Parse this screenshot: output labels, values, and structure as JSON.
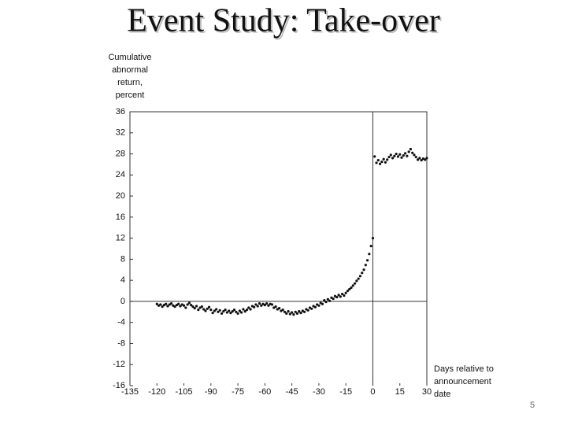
{
  "chart_data": {
    "type": "scatter",
    "title": "Event Study: Take-over",
    "ylabel": [
      "Cumulative",
      "abnormal",
      "return,",
      "percent"
    ],
    "xlabel": [
      "Days relative to",
      "announcement",
      "date"
    ],
    "x": [
      -120,
      -119,
      -118,
      -117,
      -116,
      -115,
      -114,
      -113,
      -112,
      -111,
      -110,
      -109,
      -108,
      -107,
      -106,
      -105,
      -104,
      -103,
      -102,
      -101,
      -100,
      -99,
      -98,
      -97,
      -96,
      -95,
      -94,
      -93,
      -92,
      -91,
      -90,
      -89,
      -88,
      -87,
      -86,
      -85,
      -84,
      -83,
      -82,
      -81,
      -80,
      -79,
      -78,
      -77,
      -76,
      -75,
      -74,
      -73,
      -72,
      -71,
      -70,
      -69,
      -68,
      -67,
      -66,
      -65,
      -64,
      -63,
      -62,
      -61,
      -60,
      -59,
      -58,
      -57,
      -56,
      -55,
      -54,
      -53,
      -52,
      -51,
      -50,
      -49,
      -48,
      -47,
      -46,
      -45,
      -44,
      -43,
      -42,
      -41,
      -40,
      -39,
      -38,
      -37,
      -36,
      -35,
      -34,
      -33,
      -32,
      -31,
      -30,
      -29,
      -28,
      -27,
      -26,
      -25,
      -24,
      -23,
      -22,
      -21,
      -20,
      -19,
      -18,
      -17,
      -16,
      -15,
      -14,
      -13,
      -12,
      -11,
      -10,
      -9,
      -8,
      -7,
      -6,
      -5,
      -4,
      -3,
      -2,
      -1,
      0,
      1,
      2,
      3,
      4,
      5,
      6,
      7,
      8,
      9,
      10,
      11,
      12,
      13,
      14,
      15,
      16,
      17,
      18,
      19,
      20,
      21,
      22,
      23,
      24,
      25,
      26,
      27,
      28,
      29,
      30
    ],
    "values": [
      -0.5,
      -0.8,
      -0.6,
      -1.0,
      -0.7,
      -0.5,
      -0.9,
      -0.6,
      -0.4,
      -0.8,
      -1.0,
      -0.7,
      -0.5,
      -0.9,
      -0.6,
      -0.8,
      -1.2,
      -0.6,
      -0.3,
      -0.7,
      -1.0,
      -1.3,
      -0.9,
      -1.6,
      -1.2,
      -1.0,
      -1.5,
      -1.8,
      -1.4,
      -1.1,
      -1.6,
      -2.2,
      -1.8,
      -1.5,
      -2.0,
      -1.7,
      -2.3,
      -1.9,
      -1.6,
      -2.1,
      -1.8,
      -2.2,
      -1.9,
      -1.6,
      -2.0,
      -2.3,
      -1.8,
      -2.1,
      -1.5,
      -1.9,
      -1.6,
      -1.2,
      -1.5,
      -0.9,
      -1.1,
      -0.6,
      -0.9,
      -0.4,
      -0.8,
      -0.5,
      -0.7,
      -0.4,
      -0.8,
      -0.5,
      -0.6,
      -1.2,
      -1.0,
      -1.5,
      -1.3,
      -1.8,
      -1.6,
      -2.0,
      -2.3,
      -1.9,
      -2.4,
      -2.1,
      -2.5,
      -2.0,
      -2.3,
      -1.9,
      -2.2,
      -1.8,
      -2.0,
      -1.5,
      -1.7,
      -1.2,
      -1.4,
      -0.9,
      -1.1,
      -0.6,
      -0.8,
      -0.3,
      -0.5,
      0.2,
      -0.1,
      0.4,
      0.1,
      0.7,
      0.5,
      1.0,
      0.8,
      1.2,
      0.9,
      1.4,
      1.1,
      1.6,
      2.0,
      2.3,
      2.6,
      3.0,
      3.4,
      3.9,
      4.3,
      4.8,
      5.4,
      6.0,
      6.9,
      7.8,
      9.0,
      10.5,
      12.0,
      27.5,
      26.3,
      26.8,
      26.1,
      26.5,
      27.0,
      26.4,
      26.9,
      27.4,
      27.8,
      27.2,
      27.6,
      28.0,
      27.5,
      27.9,
      27.3,
      27.7,
      28.1,
      27.6,
      28.4,
      28.9,
      28.2,
      27.8,
      27.4,
      26.9,
      27.2,
      26.8,
      27.1,
      26.9,
      27.2
    ],
    "color": "#111111",
    "xlim": [
      -135,
      30
    ],
    "xticks": [
      -135,
      -120,
      -105,
      -90,
      -75,
      -60,
      -45,
      -30,
      -15,
      0,
      15,
      30
    ],
    "ylim": [
      -16,
      36
    ],
    "yticks": [
      -16,
      -12,
      -8,
      -4,
      0,
      4,
      8,
      12,
      16,
      20,
      24,
      28,
      32,
      36
    ],
    "hline": 0,
    "vline": 0
  },
  "page_number": 5
}
